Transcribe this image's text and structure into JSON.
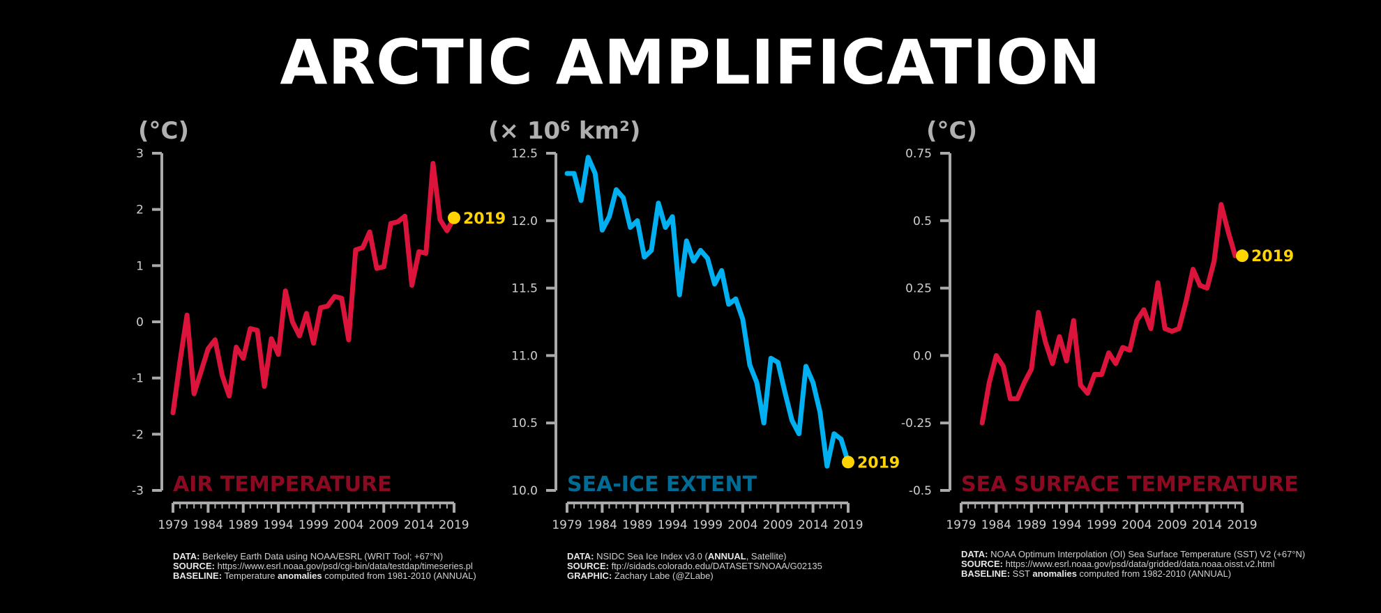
{
  "title": "ARCTIC AMPLIFICATION",
  "colors": {
    "air": "#dc143c",
    "ice": "#00b0f0",
    "sst": "#dc143c",
    "air_label": "#8b0a22",
    "ice_label": "#006b94",
    "sst_label": "#8b0a22",
    "marker": "#ffd400",
    "axis": "#aaaaaa"
  },
  "chart_data": [
    {
      "type": "line",
      "units": "(°C)",
      "label": "AIR TEMPERATURE",
      "ylim": [
        -3,
        3
      ],
      "yticks": [
        3,
        2,
        1,
        0,
        -1,
        -2,
        -3
      ],
      "ytick_labels": [
        "3",
        "2",
        "1",
        "0",
        "-1",
        "-2",
        "-3"
      ],
      "xlim": [
        1979,
        2019
      ],
      "xtick_labels": [
        "1979",
        "1984",
        "1989",
        "1994",
        "1999",
        "2004",
        "2009",
        "2014",
        "2019"
      ],
      "x": [
        1979,
        1980,
        1981,
        1982,
        1983,
        1984,
        1985,
        1986,
        1987,
        1988,
        1989,
        1990,
        1991,
        1992,
        1993,
        1994,
        1995,
        1996,
        1997,
        1998,
        1999,
        2000,
        2001,
        2002,
        2003,
        2004,
        2005,
        2006,
        2007,
        2008,
        2009,
        2010,
        2011,
        2012,
        2013,
        2014,
        2015,
        2016,
        2017,
        2018,
        2019
      ],
      "values": [
        -1.62,
        -0.7,
        0.12,
        -1.28,
        -0.88,
        -0.48,
        -0.32,
        -0.95,
        -1.32,
        -0.45,
        -0.65,
        -0.12,
        -0.15,
        -1.15,
        -0.3,
        -0.58,
        0.55,
        0.0,
        -0.25,
        0.15,
        -0.38,
        0.25,
        0.28,
        0.45,
        0.42,
        -0.32,
        1.28,
        1.32,
        1.6,
        0.95,
        0.98,
        1.75,
        1.78,
        1.88,
        0.65,
        1.25,
        1.22,
        2.82,
        1.82,
        1.62,
        1.85
      ],
      "highlight": {
        "x": 2019,
        "y": 1.85,
        "label": "2019"
      }
    },
    {
      "type": "line",
      "units": "(× 10⁶ km²)",
      "label": "SEA-ICE EXTENT",
      "ylim": [
        10.0,
        12.5
      ],
      "yticks": [
        12.5,
        12.0,
        11.5,
        11.0,
        10.5,
        10.0
      ],
      "ytick_labels": [
        "12.5",
        "12.0",
        "11.5",
        "11.0",
        "10.5",
        "10.0"
      ],
      "xlim": [
        1979,
        2019
      ],
      "xtick_labels": [
        "1979",
        "1984",
        "1989",
        "1994",
        "1999",
        "2004",
        "2009",
        "2014",
        "2019"
      ],
      "x": [
        1979,
        1980,
        1981,
        1982,
        1983,
        1984,
        1985,
        1986,
        1987,
        1988,
        1989,
        1990,
        1991,
        1992,
        1993,
        1994,
        1995,
        1996,
        1997,
        1998,
        1999,
        2000,
        2001,
        2002,
        2003,
        2004,
        2005,
        2006,
        2007,
        2008,
        2009,
        2010,
        2011,
        2012,
        2013,
        2014,
        2015,
        2016,
        2017,
        2018,
        2019
      ],
      "values": [
        12.35,
        12.35,
        12.15,
        12.47,
        12.35,
        11.93,
        12.03,
        12.23,
        12.17,
        11.95,
        12.0,
        11.73,
        11.78,
        12.13,
        11.95,
        12.03,
        11.45,
        11.85,
        11.7,
        11.78,
        11.72,
        11.53,
        11.63,
        11.38,
        11.42,
        11.27,
        10.93,
        10.8,
        10.5,
        10.98,
        10.95,
        10.73,
        10.52,
        10.42,
        10.92,
        10.8,
        10.58,
        10.18,
        10.42,
        10.38,
        10.21
      ],
      "highlight": {
        "x": 2019,
        "y": 10.21,
        "label": "2019"
      }
    },
    {
      "type": "line",
      "units": "(°C)",
      "label": "SEA SURFACE TEMPERATURE",
      "ylim": [
        -0.5,
        0.75
      ],
      "yticks": [
        0.75,
        0.5,
        0.25,
        0.0,
        -0.25,
        -0.5
      ],
      "ytick_labels": [
        "0.75",
        "0.5",
        "0.25",
        "0.0",
        "-0.25",
        "-0.5"
      ],
      "xlim": [
        1979,
        2019
      ],
      "xtick_labels": [
        "1979",
        "1984",
        "1989",
        "1994",
        "1999",
        "2004",
        "2009",
        "2014",
        "2019"
      ],
      "x": [
        1982,
        1983,
        1984,
        1985,
        1986,
        1987,
        1988,
        1989,
        1990,
        1991,
        1992,
        1993,
        1994,
        1995,
        1996,
        1997,
        1998,
        1999,
        2000,
        2001,
        2002,
        2003,
        2004,
        2005,
        2006,
        2007,
        2008,
        2009,
        2010,
        2011,
        2012,
        2013,
        2014,
        2015,
        2016,
        2017,
        2018,
        2019
      ],
      "values": [
        -0.25,
        -0.1,
        0.0,
        -0.04,
        -0.16,
        -0.16,
        -0.1,
        -0.05,
        0.16,
        0.05,
        -0.03,
        0.07,
        -0.02,
        0.13,
        -0.11,
        -0.14,
        -0.07,
        -0.07,
        0.01,
        -0.03,
        0.03,
        0.02,
        0.13,
        0.17,
        0.1,
        0.27,
        0.1,
        0.09,
        0.1,
        0.2,
        0.32,
        0.26,
        0.25,
        0.35,
        0.56,
        0.46,
        0.37,
        0.37
      ],
      "highlight": {
        "x": 2019,
        "y": 0.37,
        "label": "2019"
      }
    }
  ],
  "credits": [
    {
      "lines": [
        {
          "key": "DATA:",
          "pre": " Berkeley Earth Data using NOAA/ESRL (WRIT Tool; +67°N)",
          "bold": "",
          "post": ""
        },
        {
          "key": "SOURCE:",
          "pre": " https://www.esrl.noaa.gov/psd/cgi-bin/data/testdap/timeseries.pl",
          "bold": "",
          "post": ""
        },
        {
          "key": "BASELINE:",
          "pre": " Temperature ",
          "bold": "anomalies",
          "post": " computed from 1981-2010 (ANNUAL)"
        }
      ]
    },
    {
      "lines": [
        {
          "key": "DATA:",
          "pre": " NSIDC Sea Ice Index v3.0 (",
          "bold": "ANNUAL",
          "post": ", Satellite)"
        },
        {
          "key": "SOURCE:",
          "pre": " ftp://sidads.colorado.edu/DATASETS/NOAA/G02135",
          "bold": "",
          "post": ""
        },
        {
          "key": "GRAPHIC:",
          "pre": " Zachary Labe (@ZLabe)",
          "bold": "",
          "post": ""
        }
      ]
    },
    {
      "lines": [
        {
          "key": "DATA:",
          "pre": " NOAA Optimum Interpolation (OI) Sea Surface Temperature (SST) V2 (+67°N)",
          "bold": "",
          "post": ""
        },
        {
          "key": "SOURCE:",
          "pre": " https://www.esrl.noaa.gov/psd/data/gridded/data.noaa.oisst.v2.html",
          "bold": "",
          "post": ""
        },
        {
          "key": "BASELINE:",
          "pre": " SST ",
          "bold": "anomalies",
          "post": " computed from 1982-2010 (ANNUAL)"
        }
      ]
    }
  ]
}
